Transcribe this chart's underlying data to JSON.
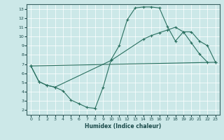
{
  "xlabel": "Humidex (Indice chaleur)",
  "bg_color": "#cce8e8",
  "line_color": "#2a7060",
  "xlim": [
    -0.5,
    23.5
  ],
  "ylim": [
    1.5,
    13.5
  ],
  "xticks": [
    0,
    1,
    2,
    3,
    4,
    5,
    6,
    7,
    8,
    9,
    10,
    11,
    12,
    13,
    14,
    15,
    16,
    17,
    18,
    19,
    20,
    21,
    22,
    23
  ],
  "yticks": [
    2,
    3,
    4,
    5,
    6,
    7,
    8,
    9,
    10,
    11,
    12,
    13
  ],
  "series1_x": [
    0,
    1,
    2,
    3,
    4,
    5,
    6,
    7,
    8,
    9,
    10,
    11,
    12,
    13,
    14,
    15,
    16,
    17,
    18,
    19,
    20,
    21,
    22
  ],
  "series1_y": [
    6.8,
    5.1,
    4.7,
    4.5,
    4.1,
    3.1,
    2.7,
    2.3,
    2.2,
    4.5,
    7.5,
    9.0,
    11.8,
    13.1,
    13.2,
    13.2,
    13.1,
    11.1,
    9.5,
    10.5,
    9.3,
    8.1,
    7.2
  ],
  "series2_x": [
    0,
    1,
    2,
    3,
    10,
    14,
    15,
    16,
    17,
    18,
    19,
    20,
    21,
    22,
    23
  ],
  "series2_y": [
    6.8,
    5.1,
    4.7,
    4.5,
    7.4,
    9.7,
    10.1,
    10.4,
    10.7,
    11.0,
    10.5,
    10.5,
    9.5,
    9.0,
    7.2
  ],
  "series3_x": [
    0,
    23
  ],
  "series3_y": [
    6.8,
    7.2
  ]
}
